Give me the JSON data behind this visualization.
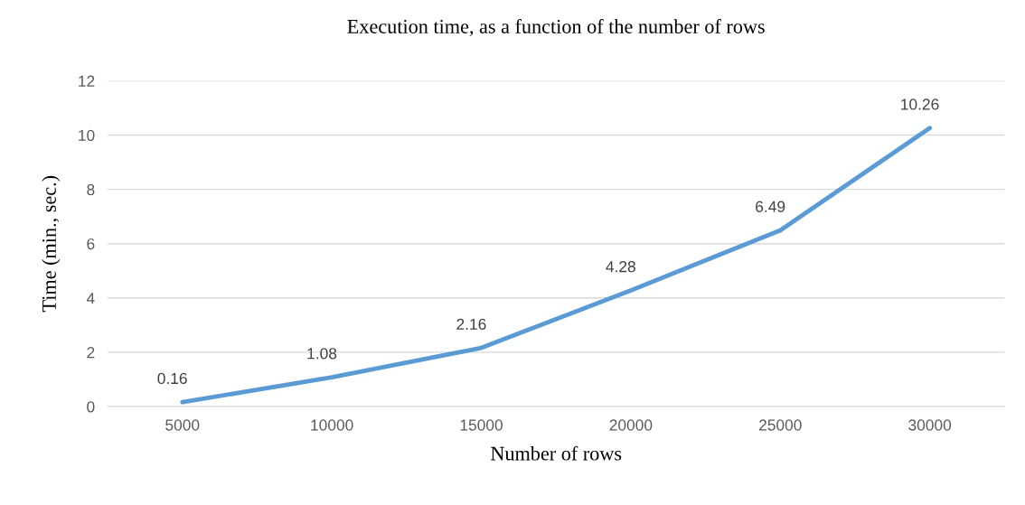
{
  "chart_data": {
    "type": "line",
    "title": "Execution time, as a function of the number of rows",
    "xlabel": "Number of rows",
    "ylabel": "Time (min., sec.)",
    "categories": [
      "5000",
      "10000",
      "15000",
      "20000",
      "25000",
      "30000"
    ],
    "series": [
      {
        "color": "#5b9bd5",
        "values": [
          0.16,
          1.08,
          2.16,
          4.28,
          6.49,
          10.26
        ]
      }
    ],
    "ylim": [
      0,
      12
    ],
    "yticks": [
      0,
      2,
      4,
      6,
      8,
      10,
      12
    ],
    "grid": "y",
    "data_labels": true,
    "marker": "none",
    "line_style": "solid",
    "legend": false
  }
}
